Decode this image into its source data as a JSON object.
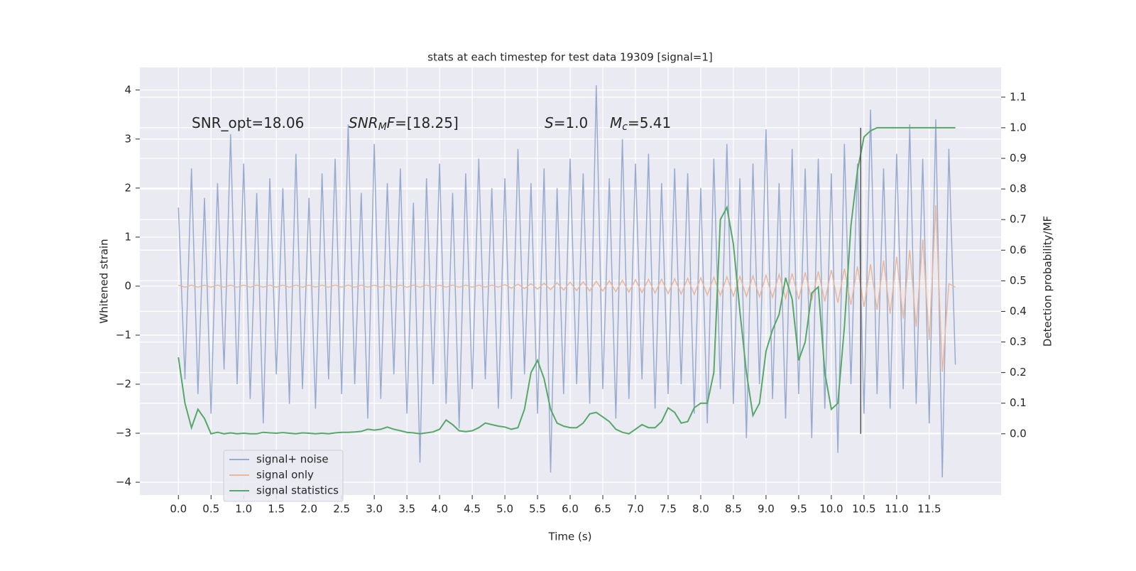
{
  "chart_data": {
    "type": "line",
    "title": "stats at each timestep for test data 19309 [signal=1]",
    "xlabel": "Time (s)",
    "ylabel": "Whitened strain",
    "y2label": "Detection probability/MF",
    "annotations": [
      {
        "parts": [
          {
            "text": "SNR_opt=18.06"
          }
        ]
      },
      {
        "parts": [
          {
            "text": "SNR",
            "style": "italic"
          },
          {
            "text": "M",
            "style": "italic-sub"
          },
          {
            "text": "F",
            "style": "italic"
          },
          {
            "text": "=[18.25]"
          }
        ]
      },
      {
        "parts": [
          {
            "text": "S",
            "style": "italic"
          },
          {
            "text": "=1.0"
          }
        ]
      },
      {
        "parts": [
          {
            "text": "M",
            "style": "italic"
          },
          {
            "text": "c",
            "style": "italic-sub"
          },
          {
            "text": "=5.41"
          }
        ]
      }
    ],
    "xlim": [
      -0.59,
      12.6
    ],
    "ylim": [
      -4.26,
      4.46
    ],
    "y2lim": [
      -0.2,
      1.197
    ],
    "xticks": [
      {
        "value": 0,
        "label": "0.0"
      },
      0.5,
      {
        "value": 1,
        "label": "1.0"
      },
      1.5,
      {
        "value": 2,
        "label": "2.0"
      },
      2.5,
      {
        "value": 3,
        "label": "3.0"
      },
      3.5,
      {
        "value": 4,
        "label": "4.0"
      },
      4.5,
      {
        "value": 5,
        "label": "5.0"
      },
      5.5,
      {
        "value": 6,
        "label": "6.0"
      },
      6.5,
      {
        "value": 7,
        "label": "7.0"
      },
      7.5,
      {
        "value": 8,
        "label": "8.0"
      },
      8.5,
      {
        "value": 9,
        "label": "9.0"
      },
      9.5,
      {
        "value": 10,
        "label": "10.0"
      },
      10.5,
      {
        "value": 11,
        "label": "11.0"
      },
      11.5
    ],
    "yticks": [
      {
        "value": -4,
        "label": "−4"
      },
      {
        "value": -3,
        "label": "−3"
      },
      {
        "value": -2,
        "label": "−2"
      },
      {
        "value": -1,
        "label": "−1"
      },
      0,
      1,
      2,
      3,
      4
    ],
    "y2ticks": [
      {
        "value": 0,
        "label": "0.0"
      },
      0.1,
      0.2,
      0.3,
      0.4,
      0.5,
      0.6,
      0.7,
      0.8,
      0.9,
      {
        "value": 1,
        "label": "1.0"
      },
      1.1
    ],
    "grid": true,
    "legend_loc": "lower left",
    "vline": {
      "x": 10.45,
      "y2": [
        0,
        1
      ],
      "color": "#555555"
    },
    "x": [
      0,
      0.1,
      0.2,
      0.3,
      0.4,
      0.5,
      0.6,
      0.7,
      0.8,
      0.9,
      1,
      1.1,
      1.2,
      1.3,
      1.4,
      1.5,
      1.6,
      1.7,
      1.8,
      1.9,
      2,
      2.1,
      2.2,
      2.3,
      2.4,
      2.5,
      2.6,
      2.7,
      2.8,
      2.9,
      3,
      3.1,
      3.2,
      3.3,
      3.4,
      3.5,
      3.6,
      3.7,
      3.8,
      3.9,
      4,
      4.1,
      4.2,
      4.3,
      4.4,
      4.5,
      4.6,
      4.7,
      4.8,
      4.9,
      5,
      5.1,
      5.2,
      5.3,
      5.4,
      5.5,
      5.6,
      5.7,
      5.8,
      5.9,
      6,
      6.1,
      6.2,
      6.3,
      6.4,
      6.5,
      6.6,
      6.7,
      6.8,
      6.9,
      7,
      7.1,
      7.2,
      7.3,
      7.4,
      7.5,
      7.6,
      7.7,
      7.8,
      7.9,
      8,
      8.1,
      8.2,
      8.3,
      8.4,
      8.5,
      8.6,
      8.7,
      8.8,
      8.9,
      9,
      9.1,
      9.2,
      9.3,
      9.4,
      9.5,
      9.6,
      9.7,
      9.8,
      9.9,
      10,
      10.1,
      10.2,
      10.3,
      10.4,
      10.5,
      10.6,
      10.7,
      10.8,
      10.9,
      11,
      11.1,
      11.2,
      11.3,
      11.4,
      11.5,
      11.6,
      11.7,
      11.8,
      11.9
    ],
    "series": [
      {
        "name": "signal+ noise",
        "color": "#9aabd0",
        "values": [
          1.6,
          -1.9,
          2.4,
          -2.2,
          1.8,
          -2.6,
          2.1,
          -1.7,
          3.1,
          -2.0,
          2.5,
          -2.3,
          1.9,
          -2.8,
          2.2,
          -1.8,
          2.0,
          -2.4,
          2.7,
          -2.1,
          1.8,
          -2.5,
          2.3,
          -1.9,
          2.6,
          -2.2,
          3.3,
          -2.0,
          1.9,
          -2.7,
          2.9,
          -2.3,
          2.1,
          -1.8,
          2.4,
          -2.6,
          1.7,
          -3.6,
          2.2,
          -2.0,
          2.5,
          -2.4,
          1.9,
          -2.9,
          2.3,
          -2.1,
          2.6,
          -1.9,
          2.0,
          -2.5,
          2.2,
          -2.3,
          2.8,
          -1.8,
          2.1,
          -2.6,
          2.4,
          -3.8,
          2.0,
          -2.2,
          2.6,
          -2.0,
          2.3,
          -2.4,
          4.1,
          -2.1,
          2.2,
          -2.7,
          3.0,
          -2.3,
          2.5,
          -1.9,
          2.7,
          -2.5,
          2.1,
          -2.2,
          2.4,
          -2.0,
          2.3,
          -2.6,
          2.0,
          -2.8,
          2.6,
          -2.1,
          2.9,
          -2.4,
          2.2,
          -3.1,
          2.5,
          -2.0,
          3.2,
          -2.3,
          2.1,
          -2.7,
          2.8,
          -2.2,
          2.4,
          -3.1,
          2.6,
          -2.5,
          2.3,
          -3.4,
          2.9,
          -2.0,
          2.5,
          -2.6,
          3.6,
          -2.2,
          2.4,
          -2.5,
          2.7,
          -2.1,
          3.3,
          -2.4,
          2.6,
          -2.8,
          3.4,
          -3.9,
          2.8,
          -1.6
        ]
      },
      {
        "name": "signal only",
        "color": "#e8b79c",
        "values": [
          0.02,
          -0.02,
          0.02,
          -0.02,
          0.02,
          -0.02,
          0.02,
          -0.02,
          0.02,
          -0.02,
          0.02,
          -0.02,
          0.02,
          -0.02,
          0.02,
          -0.02,
          0.02,
          -0.02,
          0.02,
          -0.02,
          0.02,
          -0.02,
          0.02,
          -0.02,
          0.02,
          -0.02,
          0.02,
          -0.02,
          0.02,
          -0.02,
          0.02,
          -0.02,
          0.02,
          -0.02,
          0.02,
          -0.02,
          0.02,
          -0.02,
          0.02,
          -0.02,
          0.02,
          -0.02,
          0.02,
          -0.02,
          0.02,
          -0.02,
          0.02,
          -0.02,
          0.02,
          -0.02,
          0.03,
          -0.04,
          0.04,
          -0.05,
          0.05,
          -0.06,
          0.06,
          -0.07,
          0.07,
          -0.08,
          0.08,
          -0.09,
          0.09,
          -0.1,
          0.1,
          -0.1,
          0.11,
          -0.11,
          0.12,
          -0.12,
          0.13,
          -0.13,
          0.14,
          -0.14,
          0.14,
          -0.15,
          0.15,
          -0.16,
          0.16,
          -0.17,
          0.17,
          -0.18,
          0.18,
          -0.19,
          0.19,
          -0.2,
          0.2,
          -0.21,
          0.21,
          -0.22,
          0.22,
          -0.23,
          0.24,
          -0.25,
          0.26,
          -0.27,
          0.28,
          -0.29,
          0.3,
          -0.31,
          0.33,
          -0.34,
          0.36,
          -0.38,
          0.4,
          -0.42,
          0.45,
          -0.48,
          0.52,
          -0.56,
          0.6,
          -0.66,
          0.74,
          -0.83,
          0.95,
          -1.1,
          1.65,
          -1.75,
          0.05,
          -0.02
        ]
      },
      {
        "name": "signal statistics",
        "color": "#55a868",
        "axis": "y2",
        "values": [
          0.25,
          0.1,
          0.02,
          0.08,
          0.05,
          0.0,
          0.005,
          0.0,
          0.003,
          0.0,
          0.002,
          0.0,
          0.0,
          0.005,
          0.003,
          0.002,
          0.004,
          0.002,
          0.0,
          0.003,
          0.002,
          0.0,
          0.002,
          0.0,
          0.003,
          0.005,
          0.005,
          0.006,
          0.008,
          0.015,
          0.012,
          0.015,
          0.022,
          0.015,
          0.01,
          0.005,
          0.003,
          0.0,
          0.003,
          0.006,
          0.015,
          0.045,
          0.03,
          0.01,
          0.007,
          0.01,
          0.02,
          0.035,
          0.03,
          0.025,
          0.022,
          0.015,
          0.02,
          0.08,
          0.2,
          0.24,
          0.18,
          0.08,
          0.035,
          0.025,
          0.02,
          0.02,
          0.035,
          0.065,
          0.07,
          0.055,
          0.04,
          0.015,
          0.005,
          0.0,
          0.015,
          0.03,
          0.02,
          0.02,
          0.04,
          0.085,
          0.07,
          0.035,
          0.04,
          0.085,
          0.1,
          0.1,
          0.2,
          0.7,
          0.74,
          0.62,
          0.4,
          0.2,
          0.06,
          0.1,
          0.27,
          0.34,
          0.39,
          0.51,
          0.44,
          0.24,
          0.3,
          0.46,
          0.48,
          0.2,
          0.08,
          0.1,
          0.35,
          0.68,
          0.86,
          0.97,
          0.99,
          1.0,
          1.0,
          1.0,
          1.0,
          1.0,
          1.0,
          1.0,
          1.0,
          1.0,
          1.0,
          1.0,
          1.0,
          1.0
        ]
      }
    ]
  }
}
